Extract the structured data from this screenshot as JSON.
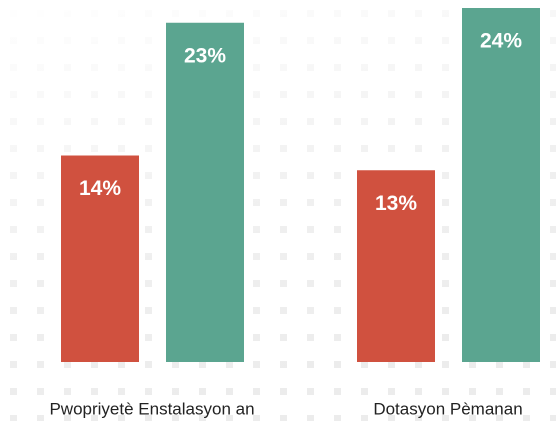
{
  "chart_data": {
    "type": "bar",
    "categories": [
      "Pwopriyetè Enstalasyon an",
      "Dotasyon Pèmanan"
    ],
    "series": [
      {
        "color": "#d0513f",
        "values": [
          14,
          13
        ],
        "value_labels": [
          "14%",
          "13%"
        ]
      },
      {
        "color": "#5ba590",
        "values": [
          23,
          24
        ],
        "value_labels": [
          "23%",
          "24%"
        ]
      }
    ]
  }
}
